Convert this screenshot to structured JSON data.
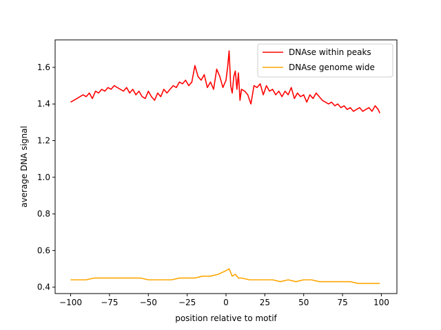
{
  "chart_data": {
    "type": "line",
    "title": "",
    "xlabel": "position relative to motif",
    "ylabel": "average DNA signal",
    "xlim": [
      -110,
      110
    ],
    "ylim": [
      0.365,
      1.75
    ],
    "xticks": [
      -100,
      -75,
      -50,
      -25,
      0,
      25,
      50,
      75,
      100
    ],
    "xtick_labels": [
      "−100",
      "−75",
      "−50",
      "−25",
      "0",
      "25",
      "50",
      "75",
      "100"
    ],
    "yticks": [
      0.4,
      0.6,
      0.8,
      1.0,
      1.2,
      1.4,
      1.6
    ],
    "ytick_labels": [
      "0.4",
      "0.6",
      "0.8",
      "1.0",
      "1.2",
      "1.4",
      "1.6"
    ],
    "grid": false,
    "legend_position": "top-right",
    "series": [
      {
        "name": "DNAse within peaks",
        "color": "#ff0000",
        "x": [
          -100,
          -98,
          -96,
          -94,
          -92,
          -90,
          -88,
          -86,
          -84,
          -82,
          -80,
          -78,
          -76,
          -74,
          -72,
          -70,
          -68,
          -66,
          -64,
          -62,
          -60,
          -58,
          -56,
          -54,
          -52,
          -50,
          -48,
          -46,
          -44,
          -42,
          -40,
          -38,
          -36,
          -34,
          -32,
          -30,
          -28,
          -26,
          -24,
          -22,
          -20,
          -18,
          -16,
          -14,
          -12,
          -10,
          -8,
          -6,
          -4,
          -2,
          0,
          1,
          2,
          3,
          4,
          5,
          6,
          7,
          8,
          9,
          10,
          12,
          14,
          16,
          18,
          20,
          22,
          24,
          26,
          28,
          30,
          32,
          34,
          36,
          38,
          40,
          42,
          44,
          46,
          48,
          50,
          52,
          54,
          56,
          58,
          60,
          62,
          64,
          66,
          68,
          70,
          72,
          74,
          76,
          78,
          80,
          82,
          84,
          86,
          88,
          90,
          92,
          94,
          96,
          98,
          99
        ],
        "values": [
          1.41,
          1.42,
          1.43,
          1.44,
          1.45,
          1.44,
          1.46,
          1.43,
          1.47,
          1.46,
          1.48,
          1.47,
          1.49,
          1.48,
          1.5,
          1.49,
          1.48,
          1.47,
          1.49,
          1.46,
          1.48,
          1.45,
          1.47,
          1.44,
          1.43,
          1.47,
          1.44,
          1.42,
          1.46,
          1.44,
          1.48,
          1.46,
          1.48,
          1.5,
          1.49,
          1.52,
          1.51,
          1.53,
          1.5,
          1.52,
          1.61,
          1.55,
          1.53,
          1.56,
          1.49,
          1.52,
          1.48,
          1.59,
          1.55,
          1.49,
          1.53,
          1.6,
          1.69,
          1.5,
          1.46,
          1.55,
          1.58,
          1.48,
          1.57,
          1.42,
          1.48,
          1.47,
          1.45,
          1.4,
          1.5,
          1.49,
          1.51,
          1.45,
          1.5,
          1.47,
          1.48,
          1.45,
          1.47,
          1.44,
          1.47,
          1.45,
          1.49,
          1.43,
          1.46,
          1.44,
          1.45,
          1.41,
          1.45,
          1.43,
          1.46,
          1.44,
          1.42,
          1.41,
          1.4,
          1.41,
          1.39,
          1.4,
          1.38,
          1.39,
          1.37,
          1.38,
          1.36,
          1.37,
          1.38,
          1.36,
          1.37,
          1.38,
          1.36,
          1.39,
          1.37,
          1.35
        ]
      },
      {
        "name": "DNAse genome wide",
        "color": "#ffa500",
        "x": [
          -100,
          -95,
          -90,
          -85,
          -80,
          -75,
          -70,
          -65,
          -60,
          -55,
          -50,
          -45,
          -40,
          -35,
          -30,
          -25,
          -20,
          -15,
          -10,
          -5,
          0,
          2,
          4,
          6,
          8,
          10,
          15,
          20,
          25,
          30,
          35,
          40,
          45,
          50,
          55,
          60,
          65,
          70,
          75,
          80,
          85,
          90,
          95,
          99
        ],
        "values": [
          0.44,
          0.44,
          0.44,
          0.45,
          0.45,
          0.45,
          0.45,
          0.45,
          0.45,
          0.45,
          0.44,
          0.44,
          0.44,
          0.44,
          0.45,
          0.45,
          0.45,
          0.46,
          0.46,
          0.47,
          0.49,
          0.5,
          0.46,
          0.47,
          0.45,
          0.45,
          0.44,
          0.44,
          0.44,
          0.44,
          0.43,
          0.44,
          0.43,
          0.44,
          0.44,
          0.43,
          0.43,
          0.43,
          0.43,
          0.43,
          0.42,
          0.42,
          0.42,
          0.42
        ]
      }
    ]
  }
}
